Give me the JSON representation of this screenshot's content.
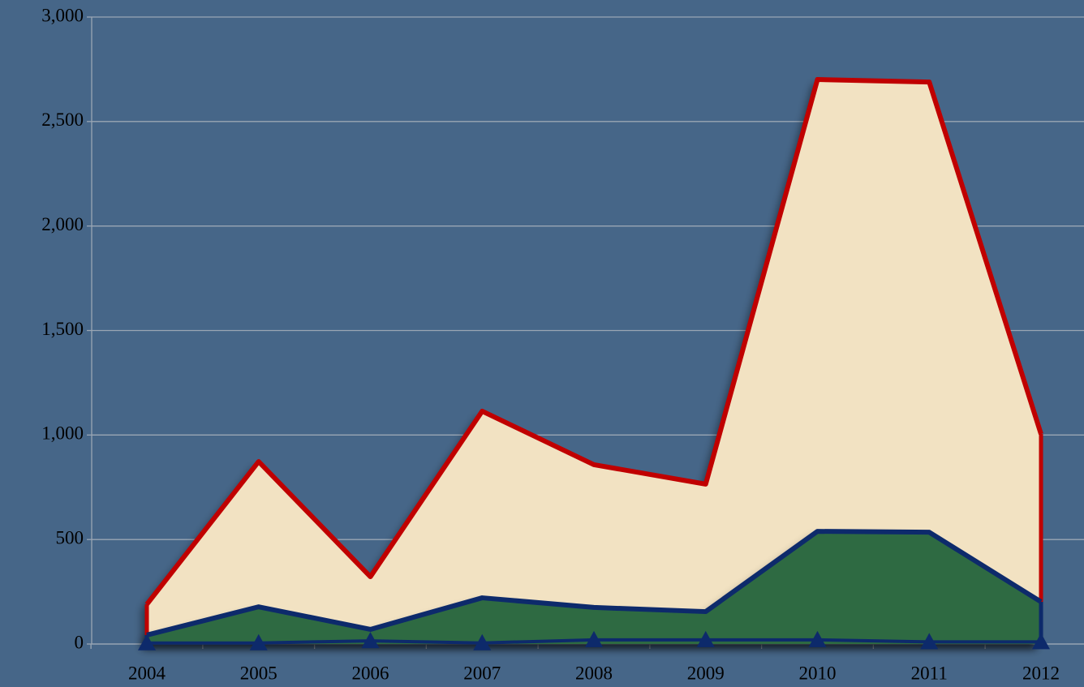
{
  "chart_data": {
    "type": "area",
    "categories": [
      "2004",
      "2005",
      "2006",
      "2007",
      "2008",
      "2009",
      "2010",
      "2011",
      "2012"
    ],
    "series": [
      {
        "kind": "area",
        "color": "#c00000",
        "fill": "#f2e2c2",
        "values": [
          190,
          873,
          322,
          1114,
          858,
          765,
          2701,
          2689,
          1005
        ]
      },
      {
        "kind": "area",
        "color": "#0d2a6b",
        "fill": "#2f6a42",
        "values": [
          43,
          178,
          70,
          221,
          175,
          155,
          539,
          535,
          202
        ]
      },
      {
        "kind": "line",
        "color": "#0d2a6b",
        "marker": "triangle",
        "values": [
          5,
          5,
          15,
          5,
          20,
          20,
          20,
          10,
          10
        ]
      }
    ],
    "background": "#466688",
    "ylim": [
      0,
      3000
    ],
    "yticks": [
      0,
      500,
      {
        "value": 1000,
        "label": "1,000"
      },
      {
        "value": 1500,
        "label": "1,500"
      },
      {
        "value": 2000,
        "label": "2,000"
      },
      {
        "value": 2500,
        "label": "2,500"
      },
      {
        "value": 3000,
        "label": "3,000"
      }
    ],
    "grid": true
  }
}
